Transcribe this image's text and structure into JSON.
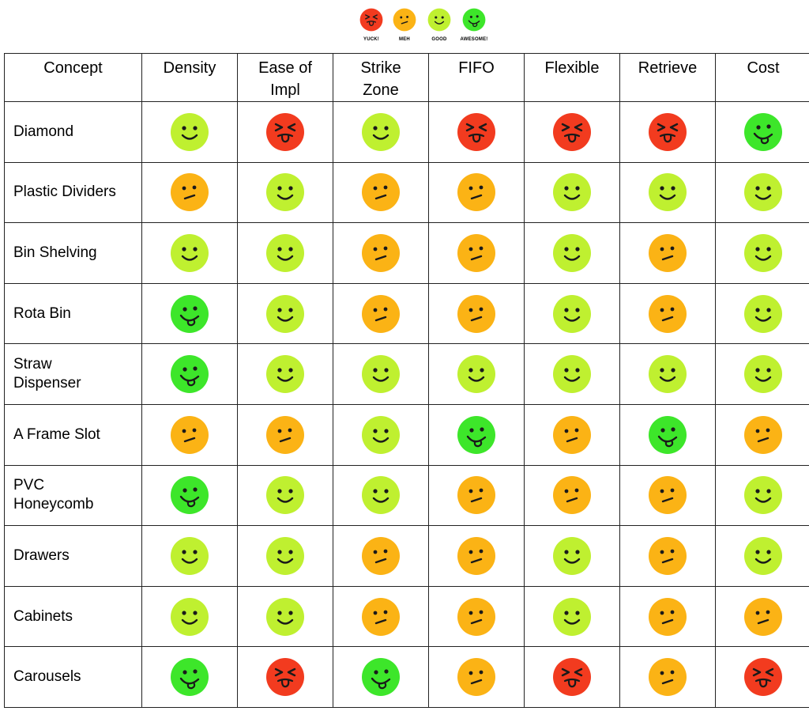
{
  "legend": [
    {
      "level": "yuck",
      "label": "YUCK!"
    },
    {
      "level": "meh",
      "label": "MEH"
    },
    {
      "level": "good",
      "label": "GOOD"
    },
    {
      "level": "awesome",
      "label": "AWESOME!"
    }
  ],
  "colors": {
    "yuck": "#f23b1f",
    "meh": "#fbb315",
    "good": "#bff030",
    "awesome": "#3de62a"
  },
  "icons": {
    "yuck": "disgusted-face-icon",
    "meh": "skeptical-face-icon",
    "good": "smiling-face-icon",
    "awesome": "tongue-out-face-icon"
  },
  "table": {
    "columns": [
      "Concept",
      "Density",
      "Ease of Impl",
      "Strike Zone",
      "FIFO",
      "Flexible",
      "Retrieve",
      "Cost"
    ],
    "rows": [
      {
        "concept": "Diamond",
        "ratings": [
          "good",
          "yuck",
          "good",
          "yuck",
          "yuck",
          "yuck",
          "awesome"
        ]
      },
      {
        "concept": "Plastic Dividers",
        "ratings": [
          "meh",
          "good",
          "meh",
          "meh",
          "good",
          "good",
          "good"
        ]
      },
      {
        "concept": "Bin Shelving",
        "ratings": [
          "good",
          "good",
          "meh",
          "meh",
          "good",
          "meh",
          "good"
        ]
      },
      {
        "concept": "Rota Bin",
        "ratings": [
          "awesome",
          "good",
          "meh",
          "meh",
          "good",
          "meh",
          "good"
        ]
      },
      {
        "concept": "Straw Dispenser",
        "ratings": [
          "awesome",
          "good",
          "good",
          "good",
          "good",
          "good",
          "good"
        ]
      },
      {
        "concept": "A Frame Slot",
        "ratings": [
          "meh",
          "meh",
          "good",
          "awesome",
          "meh",
          "awesome",
          "meh"
        ]
      },
      {
        "concept": "PVC Honeycomb",
        "ratings": [
          "awesome",
          "good",
          "good",
          "meh",
          "meh",
          "meh",
          "good"
        ]
      },
      {
        "concept": "Drawers",
        "ratings": [
          "good",
          "good",
          "meh",
          "meh",
          "good",
          "meh",
          "good"
        ]
      },
      {
        "concept": "Cabinets",
        "ratings": [
          "good",
          "good",
          "meh",
          "meh",
          "good",
          "meh",
          "meh"
        ]
      },
      {
        "concept": "Carousels",
        "ratings": [
          "awesome",
          "yuck",
          "awesome",
          "meh",
          "yuck",
          "meh",
          "yuck"
        ]
      }
    ]
  }
}
